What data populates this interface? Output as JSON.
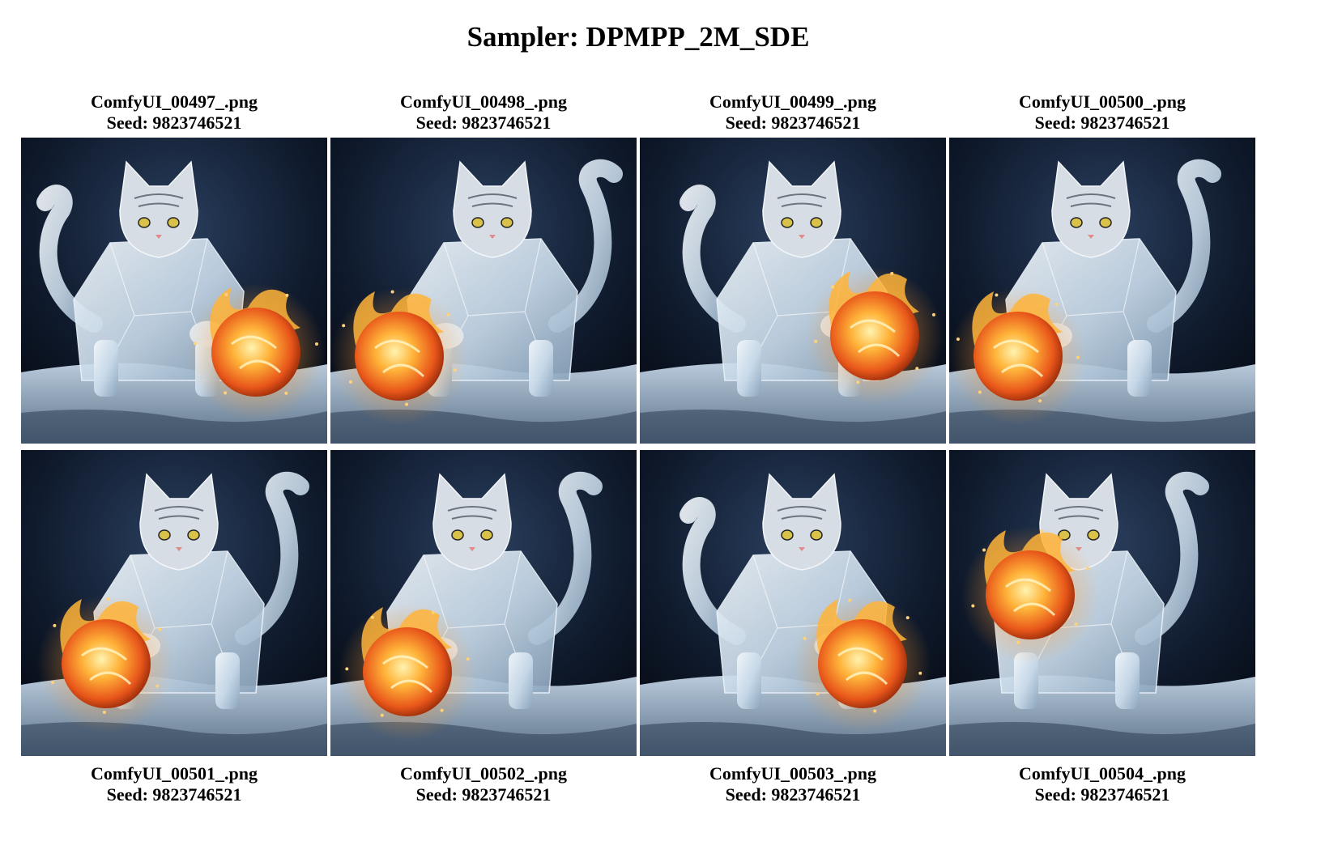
{
  "title": "Sampler: DPMPP_2M_SDE",
  "images": [
    {
      "filename": "ComfyUI_00497_.png",
      "seed": "Seed: 9823746521",
      "icon": "ice-cat-fireball-image"
    },
    {
      "filename": "ComfyUI_00498_.png",
      "seed": "Seed: 9823746521",
      "icon": "ice-cat-fireball-image"
    },
    {
      "filename": "ComfyUI_00499_.png",
      "seed": "Seed: 9823746521",
      "icon": "ice-cat-fireball-image"
    },
    {
      "filename": "ComfyUI_00500_.png",
      "seed": "Seed: 9823746521",
      "icon": "ice-cat-fireball-image"
    },
    {
      "filename": "ComfyUI_00501_.png",
      "seed": "Seed: 9823746521",
      "icon": "ice-cat-fireball-image"
    },
    {
      "filename": "ComfyUI_00502_.png",
      "seed": "Seed: 9823746521",
      "icon": "ice-cat-fireball-image"
    },
    {
      "filename": "ComfyUI_00503_.png",
      "seed": "Seed: 9823746521",
      "icon": "ice-cat-fireball-image"
    },
    {
      "filename": "ComfyUI_00504_.png",
      "seed": "Seed: 9823746521",
      "icon": "ice-cat-fireball-image"
    }
  ],
  "colors": {
    "background": "#ffffff",
    "scene_dark": "#0b1424",
    "ice": "#cfe0ee",
    "fire": "#ff9a2a"
  }
}
